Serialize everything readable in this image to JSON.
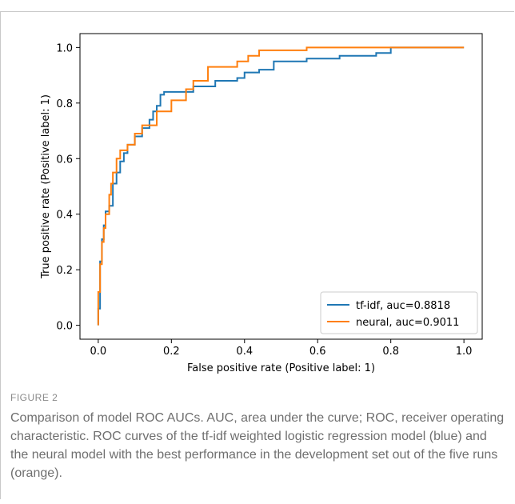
{
  "chart_data": {
    "type": "line",
    "xlabel": "False positive rate (Positive label: 1)",
    "ylabel": "True positive rate (Positive label: 1)",
    "xlim": [
      -0.05,
      1.05
    ],
    "ylim": [
      -0.05,
      1.05
    ],
    "xticks": [
      "0.0",
      "0.2",
      "0.4",
      "0.6",
      "0.8",
      "1.0"
    ],
    "yticks": [
      "0.0",
      "0.2",
      "0.4",
      "0.6",
      "0.8",
      "1.0"
    ],
    "legend_position": "lower-right",
    "grid": false,
    "series": [
      {
        "name": "tf-idf, auc=0.8818",
        "color": "#1f77b4",
        "x": [
          0.0,
          0.0,
          0.005,
          0.005,
          0.01,
          0.01,
          0.015,
          0.015,
          0.02,
          0.02,
          0.03,
          0.03,
          0.04,
          0.04,
          0.05,
          0.05,
          0.06,
          0.06,
          0.07,
          0.07,
          0.08,
          0.08,
          0.1,
          0.1,
          0.12,
          0.12,
          0.14,
          0.14,
          0.15,
          0.15,
          0.16,
          0.16,
          0.17,
          0.17,
          0.18,
          0.18,
          0.26,
          0.26,
          0.32,
          0.32,
          0.38,
          0.38,
          0.4,
          0.4,
          0.44,
          0.44,
          0.48,
          0.48,
          0.57,
          0.57,
          0.66,
          0.66,
          0.76,
          0.76,
          0.8,
          0.8,
          1.0
        ],
        "y": [
          0.0,
          0.06,
          0.06,
          0.23,
          0.23,
          0.31,
          0.31,
          0.36,
          0.36,
          0.41,
          0.41,
          0.43,
          0.43,
          0.51,
          0.51,
          0.55,
          0.55,
          0.59,
          0.59,
          0.62,
          0.62,
          0.65,
          0.65,
          0.68,
          0.68,
          0.71,
          0.71,
          0.74,
          0.74,
          0.77,
          0.77,
          0.79,
          0.79,
          0.83,
          0.83,
          0.84,
          0.84,
          0.86,
          0.86,
          0.88,
          0.88,
          0.89,
          0.89,
          0.91,
          0.91,
          0.92,
          0.92,
          0.95,
          0.95,
          0.96,
          0.96,
          0.97,
          0.97,
          0.98,
          0.98,
          1.0,
          1.0
        ]
      },
      {
        "name": "neural, auc=0.9011",
        "color": "#ff7f0e",
        "x": [
          0.0,
          0.0,
          0.005,
          0.005,
          0.01,
          0.01,
          0.015,
          0.015,
          0.02,
          0.02,
          0.03,
          0.03,
          0.035,
          0.035,
          0.04,
          0.04,
          0.05,
          0.05,
          0.06,
          0.06,
          0.08,
          0.08,
          0.1,
          0.1,
          0.12,
          0.12,
          0.16,
          0.16,
          0.2,
          0.2,
          0.24,
          0.24,
          0.26,
          0.26,
          0.3,
          0.3,
          0.38,
          0.38,
          0.41,
          0.41,
          0.44,
          0.44,
          0.57,
          0.57,
          1.0
        ],
        "y": [
          0.0,
          0.12,
          0.12,
          0.22,
          0.22,
          0.3,
          0.3,
          0.35,
          0.35,
          0.4,
          0.4,
          0.47,
          0.47,
          0.51,
          0.51,
          0.55,
          0.55,
          0.6,
          0.6,
          0.63,
          0.63,
          0.65,
          0.65,
          0.69,
          0.69,
          0.72,
          0.72,
          0.77,
          0.77,
          0.81,
          0.81,
          0.85,
          0.85,
          0.88,
          0.88,
          0.93,
          0.93,
          0.95,
          0.95,
          0.97,
          0.97,
          0.99,
          0.99,
          1.0,
          1.0
        ]
      }
    ]
  },
  "caption": {
    "label": "FIGURE 2",
    "text": "Comparison of model ROC AUCs. AUC, area under the curve; ROC, receiver operating characteristic. ROC curves of the tf-idf weighted logistic regression model (blue) and the neural model with the best performance in the development set out of the five runs (orange)."
  }
}
